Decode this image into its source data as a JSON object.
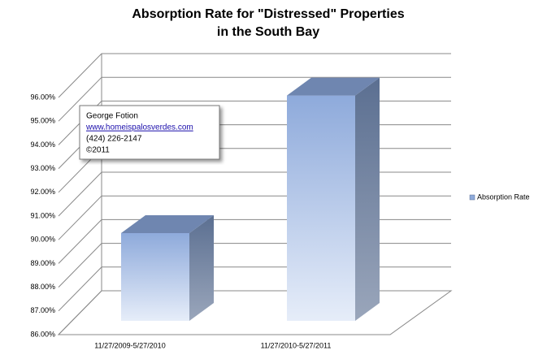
{
  "chart_data": {
    "type": "bar3d",
    "title": [
      "Absorption Rate for \"Distressed\" Properties",
      "in the South Bay"
    ],
    "categories": [
      "11/27/2009-5/27/2010",
      "11/27/2010-5/27/2011"
    ],
    "series": [
      {
        "name": "Absorption Rate",
        "color": "#8eaadb",
        "values": [
          89.7,
          95.5
        ]
      }
    ],
    "ylim": [
      86,
      96
    ],
    "yticks": [
      {
        "value": 86,
        "label": "86.00%"
      },
      {
        "value": 87,
        "label": "87.00%"
      },
      {
        "value": 88,
        "label": "88.00%"
      },
      {
        "value": 89,
        "label": "89.00%"
      },
      {
        "value": 90,
        "label": "90.00%"
      },
      {
        "value": 91,
        "label": "91.00%"
      },
      {
        "value": 92,
        "label": "92.00%"
      },
      {
        "value": 93,
        "label": "93.00%"
      },
      {
        "value": 94,
        "label": "94.00%"
      },
      {
        "value": 95,
        "label": "95.00%"
      },
      {
        "value": 96,
        "label": "96.00%"
      }
    ],
    "grid": true,
    "legend": "right",
    "annotation": [
      "George Fotion",
      "www.homeispalosverdes.com",
      "(424) 226-2147",
      "©2011"
    ]
  }
}
